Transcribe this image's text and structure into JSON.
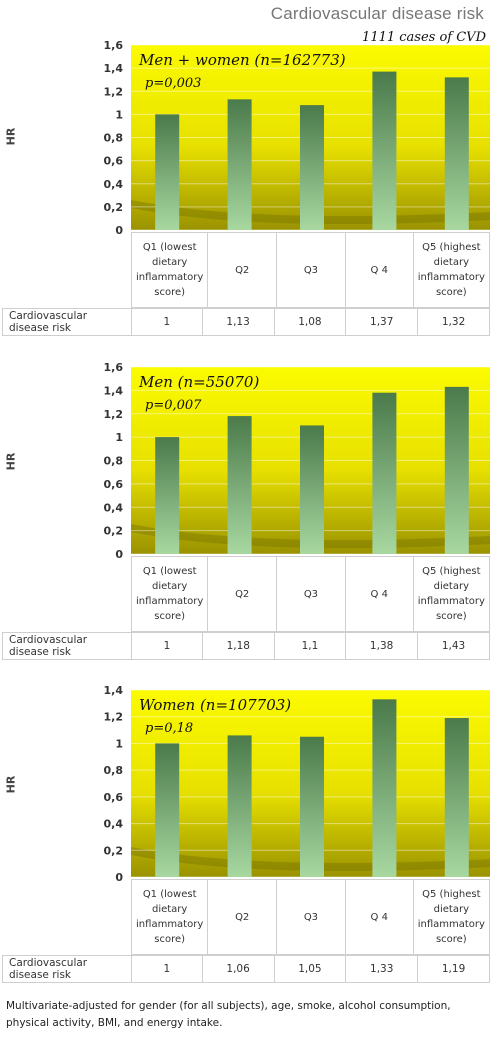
{
  "header": {
    "title": "Cardiovascular disease risk",
    "subtitle": "1111 cases of CVD"
  },
  "categories": [
    "Q1 (lowest dietary inflammatory score)",
    "Q2",
    "Q3",
    "Q 4",
    "Q5 (highest dietary inflammatory score)"
  ],
  "row_label": "Cardiovascular disease risk",
  "ylabel": "HR",
  "chart_data": [
    {
      "type": "bar",
      "annotation_line1": "Men + women (n=162773)",
      "annotation_line2": "p=0,003",
      "ylabel": "HR",
      "ylim": [
        0,
        1.6
      ],
      "yticks": [
        0,
        0.2,
        0.4,
        0.6,
        0.8,
        1,
        1.2,
        1.4,
        1.6
      ],
      "ytick_labels": [
        "0",
        "0,2",
        "0,4",
        "0,6",
        "0,8",
        "1",
        "1,2",
        "1,4",
        "1,6"
      ],
      "values": [
        1,
        1.13,
        1.08,
        1.37,
        1.32
      ],
      "value_labels": [
        "1",
        "1,13",
        "1,08",
        "1,37",
        "1,32"
      ]
    },
    {
      "type": "bar",
      "annotation_line1": "Men (n=55070)",
      "annotation_line2": "p=0,007",
      "ylabel": "HR",
      "ylim": [
        0,
        1.6
      ],
      "yticks": [
        0,
        0.2,
        0.4,
        0.6,
        0.8,
        1,
        1.2,
        1.4,
        1.6
      ],
      "ytick_labels": [
        "0",
        "0,2",
        "0,4",
        "0,6",
        "0,8",
        "1",
        "1,2",
        "1,4",
        "1,6"
      ],
      "values": [
        1,
        1.18,
        1.1,
        1.38,
        1.43
      ],
      "value_labels": [
        "1",
        "1,18",
        "1,1",
        "1,38",
        "1,43"
      ]
    },
    {
      "type": "bar",
      "annotation_line1": "Women (n=107703)",
      "annotation_line2": "p=0,18",
      "ylabel": "HR",
      "ylim": [
        0,
        1.4
      ],
      "yticks": [
        0,
        0.2,
        0.4,
        0.6,
        0.8,
        1,
        1.2,
        1.4
      ],
      "ytick_labels": [
        "0",
        "0,2",
        "0,4",
        "0,6",
        "0,8",
        "1",
        "1,2",
        "1,4"
      ],
      "values": [
        1,
        1.06,
        1.05,
        1.33,
        1.19
      ],
      "value_labels": [
        "1",
        "1,06",
        "1,05",
        "1,33",
        "1,19"
      ]
    }
  ],
  "footnote": "Multivariate-adjusted for gender (for all subjects), age, smoke, alcohol consumption, physical activity, BMI, and energy intake.",
  "colors": {
    "plot_bg_top": "#fbfb00",
    "plot_bg_bottom": "#9a9200",
    "bar_top": "#4b7a4b",
    "bar_bottom": "#a8d8a0"
  }
}
